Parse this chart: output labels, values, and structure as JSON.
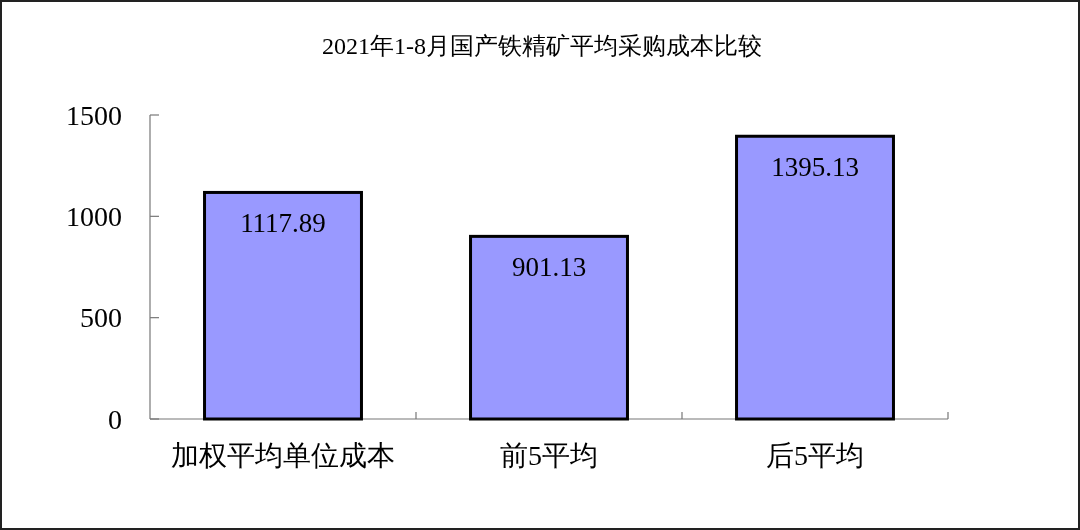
{
  "chart_data": {
    "type": "bar",
    "title": "2021年1-8月国产铁精矿平均采购成本比较",
    "categories": [
      "加权平均单位成本",
      "前5平均",
      "后5平均"
    ],
    "values": [
      1117.89,
      901.13,
      1395.13
    ],
    "color": "#9999ff",
    "ylim": [
      0,
      1500
    ],
    "yticks": [
      0,
      500,
      1000,
      1500
    ],
    "data_labels": true,
    "grid": false
  }
}
